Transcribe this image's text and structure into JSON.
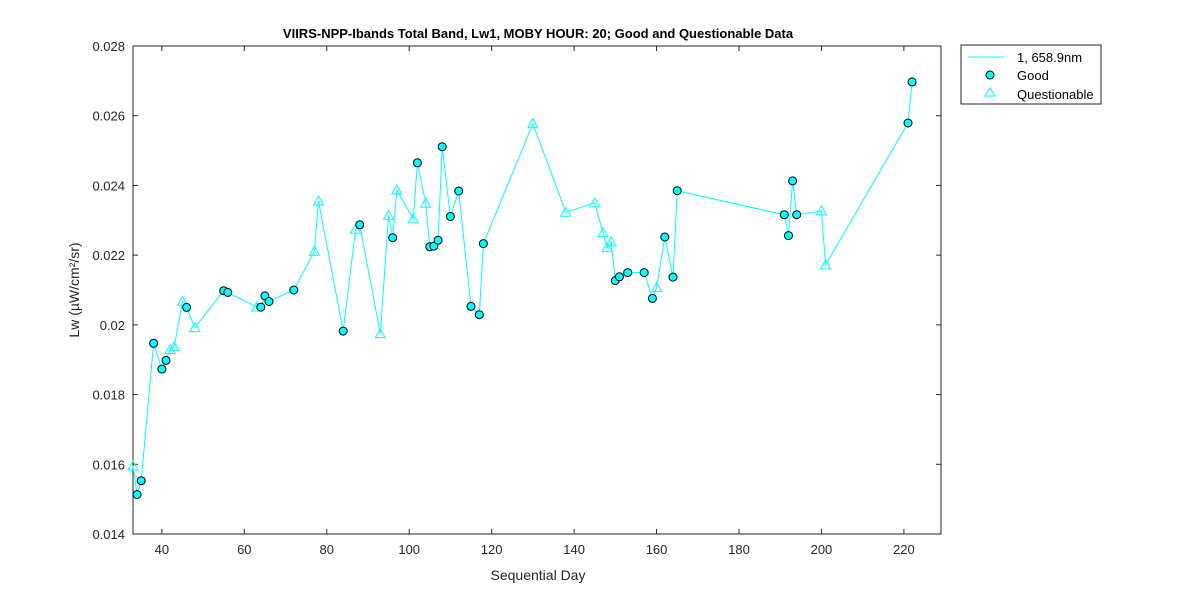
{
  "chart_data": {
    "type": "line",
    "title": "VIIRS-NPP-Ibands Total Band,  Lw1, MOBY HOUR: 20;  Good and Questionable Data",
    "xlabel": "Sequential Day",
    "ylabel": "Lw (µW/cm²/sr)",
    "xlim": [
      33,
      229
    ],
    "ylim": [
      0.014,
      0.028
    ],
    "xticks": [
      40,
      60,
      80,
      100,
      120,
      140,
      160,
      180,
      200,
      220
    ],
    "yticks": [
      0.014,
      0.016,
      0.018,
      0.02,
      0.022,
      0.024,
      0.026,
      0.028
    ],
    "xtick_labels": [
      "40",
      "60",
      "80",
      "100",
      "120",
      "140",
      "160",
      "180",
      "200",
      "220"
    ],
    "ytick_labels": [
      "0.014",
      "0.016",
      "0.018",
      "0.02",
      "0.022",
      "0.024",
      "0.026",
      "0.028"
    ],
    "grid": false,
    "legend_position": "outside-top-right",
    "color": "#00ffff",
    "series": [
      {
        "name": "1, 658.9nm",
        "points": [
          {
            "x": 33,
            "y": 0.01595,
            "q": "questionable"
          },
          {
            "x": 34,
            "y": 0.01513,
            "q": "good"
          },
          {
            "x": 35,
            "y": 0.01553,
            "q": "good"
          },
          {
            "x": 38,
            "y": 0.01947,
            "q": "good"
          },
          {
            "x": 40,
            "y": 0.01873,
            "q": "good"
          },
          {
            "x": 41,
            "y": 0.01898,
            "q": "good"
          },
          {
            "x": 42,
            "y": 0.01929,
            "q": "questionable"
          },
          {
            "x": 43,
            "y": 0.01937,
            "q": "questionable"
          },
          {
            "x": 45,
            "y": 0.02068,
            "q": "questionable"
          },
          {
            "x": 46,
            "y": 0.0205,
            "q": "good"
          },
          {
            "x": 48,
            "y": 0.01992,
            "q": "questionable"
          },
          {
            "x": 55,
            "y": 0.02098,
            "q": "good"
          },
          {
            "x": 56,
            "y": 0.02093,
            "q": "good"
          },
          {
            "x": 63,
            "y": 0.02051,
            "q": "questionable"
          },
          {
            "x": 64,
            "y": 0.02051,
            "q": "good"
          },
          {
            "x": 65,
            "y": 0.02083,
            "q": "good"
          },
          {
            "x": 66,
            "y": 0.02067,
            "q": "good"
          },
          {
            "x": 72,
            "y": 0.021,
            "q": "good"
          },
          {
            "x": 77,
            "y": 0.02211,
            "q": "questionable"
          },
          {
            "x": 78,
            "y": 0.02355,
            "q": "questionable"
          },
          {
            "x": 84,
            "y": 0.01982,
            "q": "good"
          },
          {
            "x": 87,
            "y": 0.02274,
            "q": "questionable"
          },
          {
            "x": 88,
            "y": 0.02287,
            "q": "good"
          },
          {
            "x": 93,
            "y": 0.01975,
            "q": "questionable"
          },
          {
            "x": 95,
            "y": 0.02314,
            "q": "questionable"
          },
          {
            "x": 96,
            "y": 0.0225,
            "q": "good"
          },
          {
            "x": 97,
            "y": 0.02387,
            "q": "questionable"
          },
          {
            "x": 101,
            "y": 0.02304,
            "q": "questionable"
          },
          {
            "x": 102,
            "y": 0.02465,
            "q": "good"
          },
          {
            "x": 104,
            "y": 0.02349,
            "q": "questionable"
          },
          {
            "x": 105,
            "y": 0.02224,
            "q": "good"
          },
          {
            "x": 106,
            "y": 0.02226,
            "q": "good"
          },
          {
            "x": 107,
            "y": 0.02243,
            "q": "good"
          },
          {
            "x": 108,
            "y": 0.02511,
            "q": "good"
          },
          {
            "x": 110,
            "y": 0.02311,
            "q": "good"
          },
          {
            "x": 112,
            "y": 0.02384,
            "q": "good"
          },
          {
            "x": 115,
            "y": 0.02053,
            "q": "good"
          },
          {
            "x": 117,
            "y": 0.02029,
            "q": "good"
          },
          {
            "x": 118,
            "y": 0.02233,
            "q": "good"
          },
          {
            "x": 130,
            "y": 0.02577,
            "q": "questionable"
          },
          {
            "x": 138,
            "y": 0.02323,
            "q": "questionable"
          },
          {
            "x": 145,
            "y": 0.0235,
            "q": "questionable"
          },
          {
            "x": 147,
            "y": 0.02264,
            "q": "questionable"
          },
          {
            "x": 148,
            "y": 0.02221,
            "q": "questionable"
          },
          {
            "x": 149,
            "y": 0.02238,
            "q": "questionable"
          },
          {
            "x": 150,
            "y": 0.02127,
            "q": "good"
          },
          {
            "x": 151,
            "y": 0.02138,
            "q": "good"
          },
          {
            "x": 153,
            "y": 0.0215,
            "q": "good"
          },
          {
            "x": 157,
            "y": 0.0215,
            "q": "good"
          },
          {
            "x": 159,
            "y": 0.02076,
            "q": "good"
          },
          {
            "x": 160,
            "y": 0.02107,
            "q": "questionable"
          },
          {
            "x": 162,
            "y": 0.02252,
            "q": "good"
          },
          {
            "x": 164,
            "y": 0.02137,
            "q": "good"
          },
          {
            "x": 165,
            "y": 0.02385,
            "q": "good"
          },
          {
            "x": 191,
            "y": 0.02316,
            "q": "good"
          },
          {
            "x": 192,
            "y": 0.02256,
            "q": "good"
          },
          {
            "x": 193,
            "y": 0.02413,
            "q": "good"
          },
          {
            "x": 194,
            "y": 0.02316,
            "q": "good"
          },
          {
            "x": 200,
            "y": 0.02327,
            "q": "questionable"
          },
          {
            "x": 201,
            "y": 0.02172,
            "q": "questionable"
          },
          {
            "x": 221,
            "y": 0.02579,
            "q": "good"
          },
          {
            "x": 222,
            "y": 0.02697,
            "q": "good"
          }
        ]
      }
    ],
    "legend": {
      "entries": [
        {
          "label": "1, 658.9nm",
          "symbol": "line"
        },
        {
          "label": "Good",
          "symbol": "circle"
        },
        {
          "label": "Questionable",
          "symbol": "triangle"
        }
      ]
    }
  }
}
